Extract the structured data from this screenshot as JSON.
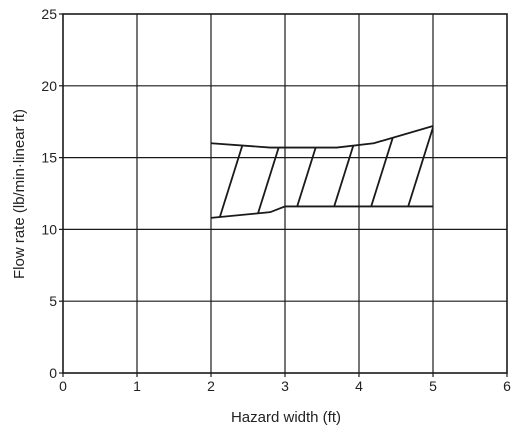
{
  "chart_data": {
    "type": "area",
    "xlabel": "Hazard width (ft)",
    "ylabel": "Flow rate (lb/min·linear ft)",
    "xlim": [
      0,
      6
    ],
    "ylim": [
      0,
      25
    ],
    "x_ticks": [
      "0",
      "1",
      "2",
      "3",
      "4",
      "5",
      "6"
    ],
    "y_ticks": [
      "0",
      "5",
      "10",
      "15",
      "20",
      "25"
    ],
    "grid": true,
    "hatch": "diagonal",
    "upper_boundary": {
      "x": [
        2.0,
        2.8,
        3.7,
        4.2,
        5.0
      ],
      "y": [
        16.0,
        15.7,
        15.7,
        16.0,
        17.2
      ]
    },
    "lower_boundary": {
      "x": [
        2.0,
        2.8,
        3.0,
        4.0,
        5.0
      ],
      "y": [
        10.8,
        11.2,
        11.6,
        11.6,
        11.6
      ]
    },
    "colors": {
      "line": "#1a1a1a",
      "grid": "#1a1a1a",
      "background": "#ffffff"
    }
  }
}
